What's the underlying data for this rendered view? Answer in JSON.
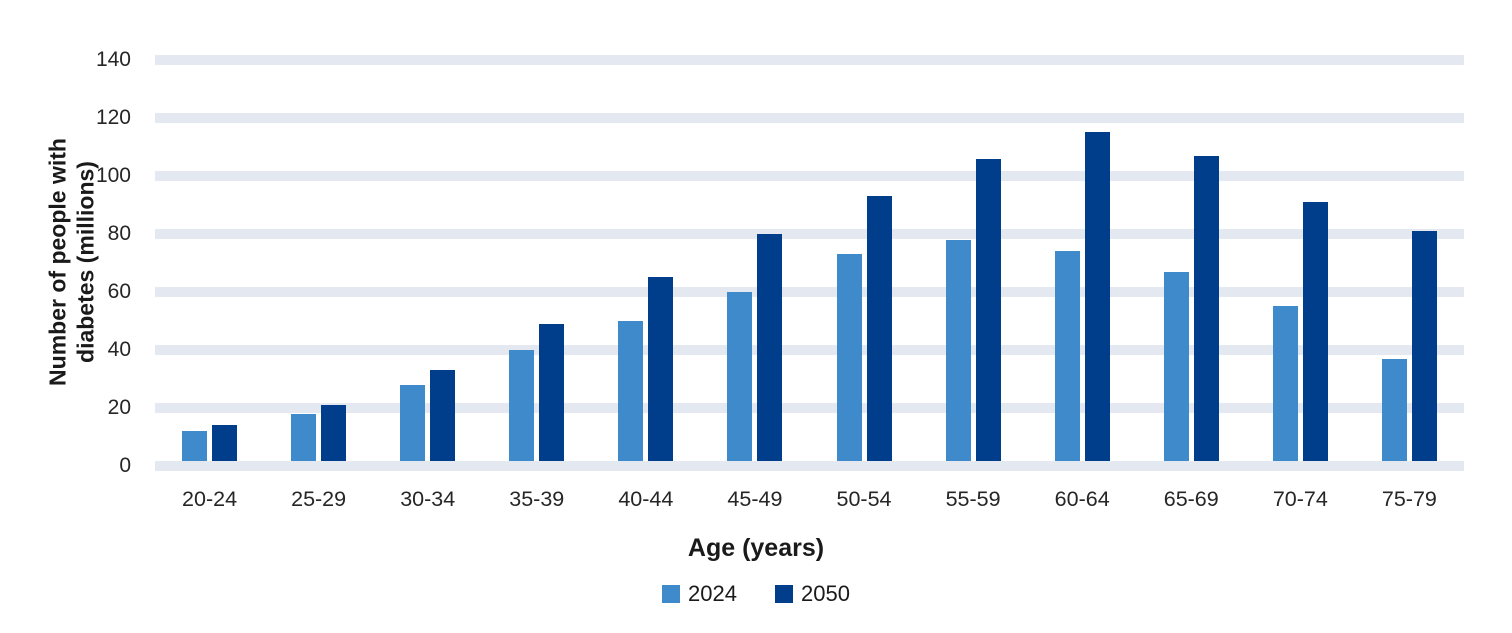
{
  "chart_data": {
    "type": "bar",
    "categories": [
      "20-24",
      "25-29",
      "30-34",
      "35-39",
      "40-44",
      "45-49",
      "50-54",
      "55-59",
      "60-64",
      "65-69",
      "70-74",
      "75-79"
    ],
    "series": [
      {
        "name": "2024",
        "color": "#3E8ACA",
        "values": [
          12,
          18,
          28,
          40,
          50,
          60,
          73,
          78,
          74,
          67,
          55,
          37
        ]
      },
      {
        "name": "2050",
        "color": "#003E8C",
        "values": [
          14,
          21,
          33,
          49,
          65,
          80,
          93,
          106,
          115,
          107,
          91,
          81
        ]
      }
    ],
    "xlabel": "Age (years)",
    "ylabel": "Number of people with diabetes (millions)",
    "ylim": [
      0,
      140
    ],
    "yticks": [
      0,
      20,
      40,
      60,
      80,
      100,
      120,
      140
    ],
    "grid": "horizontal-bands",
    "grid_color": "#E4E9F1",
    "legend_position": "bottom-center"
  },
  "axes": {
    "x_title": "Age (years)",
    "y_title_line1": "Number of people with",
    "y_title_line2": "diabetes (millions)"
  },
  "legend": {
    "items": [
      {
        "label": "2024",
        "color": "#3E8ACA"
      },
      {
        "label": "2050",
        "color": "#003E8C"
      }
    ]
  }
}
